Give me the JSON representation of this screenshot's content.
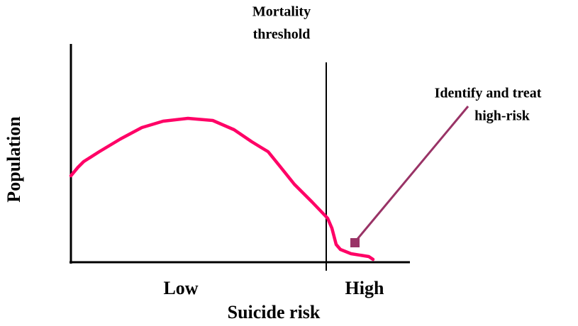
{
  "threshold_label": [
    "Mortality",
    "threshold"
  ],
  "y_axis_label": "Population",
  "annotation": [
    "Identify and treat",
    "high-risk"
  ],
  "x_categories": [
    "Low",
    "High"
  ],
  "x_axis_label": "Suicide risk"
}
